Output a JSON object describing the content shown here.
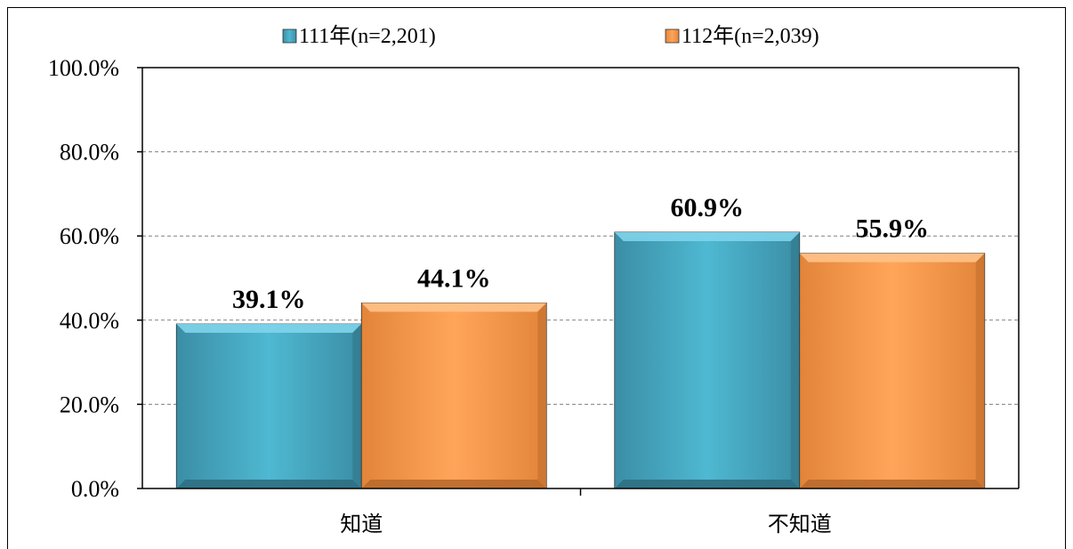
{
  "chart_data": {
    "type": "bar",
    "categories": [
      "知道",
      "不知道"
    ],
    "series": [
      {
        "name": "111年(n=2,201)",
        "values": [
          39.1,
          60.9
        ],
        "labels": [
          "39.1%",
          "60.9%"
        ],
        "color": "#4bacc6"
      },
      {
        "name": "112年(n=2,039)",
        "values": [
          44.1,
          55.9
        ],
        "labels": [
          "44.1%",
          "55.9%"
        ],
        "color": "#f79646"
      }
    ],
    "ylim": [
      0,
      100
    ],
    "yticks": [
      0,
      20,
      40,
      60,
      80,
      100
    ],
    "ytick_labels": [
      "0.0%",
      "20.0%",
      "40.0%",
      "60.0%",
      "80.0%",
      "100.0%"
    ],
    "grid": true,
    "legend_position": "top"
  }
}
